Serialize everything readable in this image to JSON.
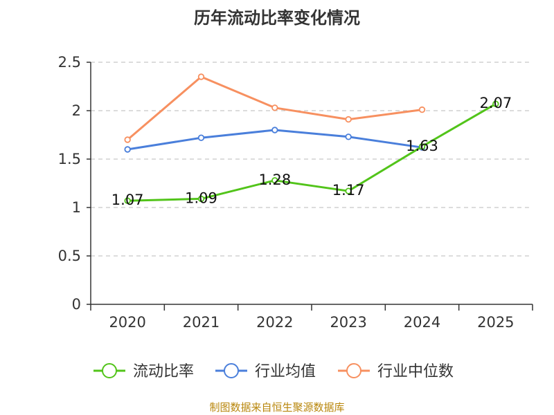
{
  "chart_data": {
    "type": "line",
    "title": "历年流动比率变化情况",
    "categories": [
      "2020",
      "2021",
      "2022",
      "2023",
      "2024",
      "2025"
    ],
    "ylim": [
      0,
      2.5
    ],
    "yticks": [
      "0",
      "0.5",
      "1",
      "1.5",
      "2",
      "2.5"
    ],
    "grid": true,
    "legend_position": "bottom",
    "series": [
      {
        "name": "流动比率",
        "color": "#52c41a",
        "values": [
          1.07,
          1.09,
          1.28,
          1.17,
          1.63,
          2.07
        ],
        "labels": [
          "1.07",
          "1.09",
          "1.28",
          "1.17",
          "1.63",
          "2.07"
        ]
      },
      {
        "name": "行业均值",
        "color": "#4a7fdb",
        "values": [
          1.6,
          1.72,
          1.8,
          1.73,
          1.62,
          null
        ]
      },
      {
        "name": "行业中位数",
        "color": "#f79060",
        "values": [
          1.7,
          2.35,
          2.03,
          1.91,
          2.01,
          null
        ]
      }
    ]
  },
  "source": "制图数据来自恒生聚源数据库"
}
